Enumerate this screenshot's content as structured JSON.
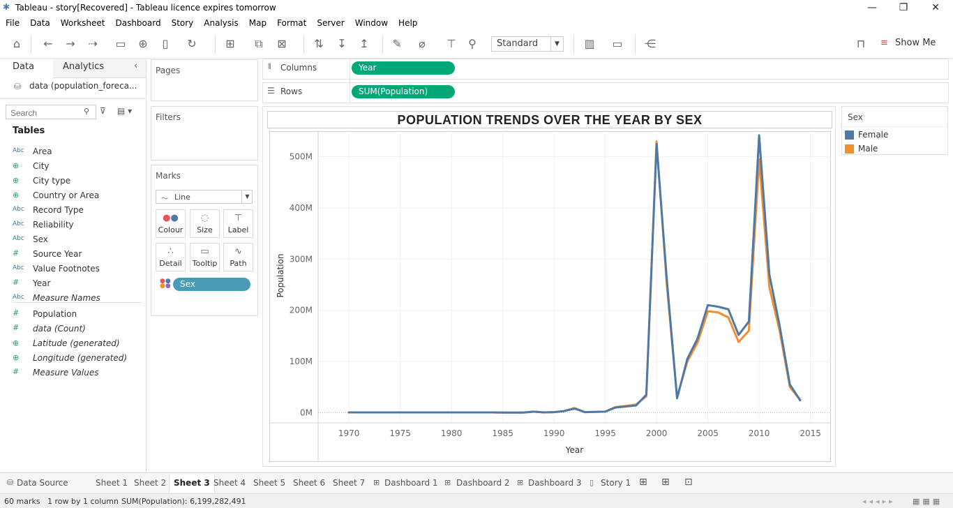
{
  "window": {
    "title": "Tableau - story[Recovered] - Tableau licence expires tomorrow",
    "minimize": "—",
    "restore": "❐",
    "close": "✕"
  },
  "menu": [
    "File",
    "Data",
    "Worksheet",
    "Dashboard",
    "Story",
    "Analysis",
    "Map",
    "Format",
    "Server",
    "Window",
    "Help"
  ],
  "toolbar": {
    "fit_mode": "Standard",
    "show_me_label": "Show Me"
  },
  "left_pane": {
    "tabs": {
      "data": "Data",
      "analytics": "Analytics"
    },
    "data_source": "data (population_foreca...",
    "search_placeholder": "Search",
    "tables_header": "Tables",
    "fields": [
      {
        "icon": "Abc",
        "name": "Area",
        "italic": false,
        "kind": "dim"
      },
      {
        "icon": "globe-icon",
        "name": "City",
        "italic": false,
        "kind": "geo"
      },
      {
        "icon": "globe-icon",
        "name": "City type",
        "italic": false,
        "kind": "geo"
      },
      {
        "icon": "globe-icon",
        "name": "Country or Area",
        "italic": false,
        "kind": "geo"
      },
      {
        "icon": "Abc",
        "name": "Record Type",
        "italic": false,
        "kind": "dim"
      },
      {
        "icon": "Abc",
        "name": "Reliability",
        "italic": false,
        "kind": "dim"
      },
      {
        "icon": "Abc",
        "name": "Sex",
        "italic": false,
        "kind": "dim"
      },
      {
        "icon": "#",
        "name": "Source Year",
        "italic": false,
        "kind": "num"
      },
      {
        "icon": "Abc",
        "name": "Value Footnotes",
        "italic": false,
        "kind": "dim"
      },
      {
        "icon": "#",
        "name": "Year",
        "italic": false,
        "kind": "num"
      },
      {
        "icon": "Abc",
        "name": "Measure Names",
        "italic": true,
        "kind": "dim"
      },
      {
        "icon": "#",
        "name": "Population",
        "italic": false,
        "kind": "num"
      },
      {
        "icon": "#",
        "name": "data (Count)",
        "italic": true,
        "kind": "num"
      },
      {
        "icon": "globe-icon",
        "name": "Latitude (generated)",
        "italic": true,
        "kind": "geo"
      },
      {
        "icon": "globe-icon",
        "name": "Longitude (generated)",
        "italic": true,
        "kind": "geo"
      },
      {
        "icon": "#",
        "name": "Measure Values",
        "italic": true,
        "kind": "num"
      }
    ]
  },
  "cards": {
    "pages": "Pages",
    "filters": "Filters",
    "marks": "Marks",
    "mark_type": "Line",
    "mark_buttons": [
      "Colour",
      "Size",
      "Label",
      "Detail",
      "Tooltip",
      "Path"
    ],
    "color_pill": "Sex"
  },
  "shelves": {
    "columns_label": "Columns",
    "rows_label": "Rows",
    "columns_pill": "Year",
    "rows_pill": "SUM(Population)"
  },
  "colors": {
    "female": "#4e79a7",
    "male": "#f28e2b",
    "pill_green": "#00a878",
    "pill_teal": "#4a9bb8"
  },
  "legend": {
    "title": "Sex",
    "items": [
      {
        "label": "Female",
        "color": "#4e79a7"
      },
      {
        "label": "Male",
        "color": "#f28e2b"
      }
    ]
  },
  "chart_data": {
    "type": "line",
    "title": "POPULATION TRENDS OVER THE YEAR BY SEX",
    "xlabel": "Year",
    "ylabel": "Population",
    "xlim": [
      1967,
      2017
    ],
    "ylim": [
      -20000000,
      550000000
    ],
    "x_ticks": [
      1970,
      1975,
      1980,
      1985,
      1990,
      1995,
      2000,
      2005,
      2010,
      2015
    ],
    "y_ticks": [
      {
        "value": 0,
        "label": "0M"
      },
      {
        "value": 100000000,
        "label": "100M"
      },
      {
        "value": 200000000,
        "label": "200M"
      },
      {
        "value": 300000000,
        "label": "300M"
      },
      {
        "value": 400000000,
        "label": "400M"
      },
      {
        "value": 500000000,
        "label": "500M"
      }
    ],
    "grid": true,
    "x": [
      1970,
      1971,
      1972,
      1973,
      1974,
      1975,
      1976,
      1977,
      1978,
      1979,
      1980,
      1981,
      1982,
      1983,
      1984,
      1985,
      1986,
      1987,
      1988,
      1989,
      1990,
      1991,
      1992,
      1993,
      1994,
      1995,
      1996,
      1997,
      1998,
      1999,
      2000,
      2001,
      2002,
      2003,
      2004,
      2005,
      2006,
      2007,
      2008,
      2009,
      2010,
      2011,
      2012,
      2013,
      2014
    ],
    "series": [
      {
        "name": "Female",
        "color": "#4e79a7",
        "values": [
          500000,
          500000,
          500000,
          500000,
          500000,
          500000,
          500000,
          500000,
          500000,
          500000,
          500000,
          500000,
          500000,
          500000,
          500000,
          0,
          0,
          0,
          2000000,
          500000,
          1000000,
          3000000,
          8000000,
          1000000,
          1500000,
          2000000,
          10000000,
          12000000,
          14000000,
          35000000,
          525000000,
          260000000,
          28000000,
          105000000,
          145000000,
          210000000,
          207000000,
          202000000,
          152000000,
          178000000,
          542000000,
          270000000,
          170000000,
          55000000,
          24000000
        ]
      },
      {
        "name": "Male",
        "color": "#f28e2b",
        "values": [
          500000,
          500000,
          500000,
          500000,
          500000,
          500000,
          500000,
          500000,
          500000,
          500000,
          500000,
          500000,
          500000,
          500000,
          500000,
          0,
          0,
          0,
          2000000,
          500000,
          1000000,
          3000000,
          9000000,
          1000000,
          1500000,
          2000000,
          11000000,
          13000000,
          16000000,
          32000000,
          530000000,
          250000000,
          30000000,
          100000000,
          137000000,
          198000000,
          196000000,
          186000000,
          138000000,
          160000000,
          495000000,
          245000000,
          160000000,
          50000000,
          25000000
        ]
      }
    ]
  },
  "sheet_tabs": [
    "Data Source",
    "Sheet 1",
    "Sheet 2",
    "Sheet 3",
    "Sheet 4",
    "Sheet 5",
    "Sheet 6",
    "Sheet 7",
    "Dashboard 1",
    "Dashboard 2",
    "Dashboard 3",
    "Story 1"
  ],
  "active_tab": "Sheet 3",
  "status": {
    "marks": "60 marks",
    "rows_cols": "1 row by 1 column",
    "sum": "SUM(Population): 6,199,282,491"
  }
}
